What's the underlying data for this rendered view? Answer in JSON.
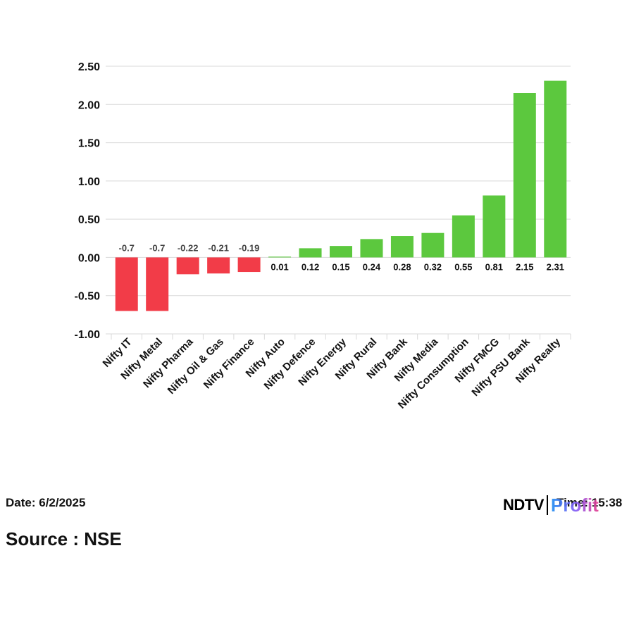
{
  "chart_data": {
    "type": "bar",
    "categories": [
      "Nifty IT",
      "Nifty Metal",
      "Nifty Pharma",
      "Nifty Oil & Gas",
      "Nifty Finance",
      "Nifty Auto",
      "Nifty Defence",
      "Nifty Energy",
      "Nifty Rural",
      "Nifty Bank",
      "Nifty Media",
      "Nifty Consumption",
      "Nifty FMCG",
      "Nifty PSU Bank",
      "Nifty Realty"
    ],
    "values": [
      -0.7,
      -0.7,
      -0.22,
      -0.21,
      -0.19,
      0.01,
      0.12,
      0.15,
      0.24,
      0.28,
      0.32,
      0.55,
      0.81,
      2.15,
      2.31
    ],
    "value_labels": [
      "-0.7",
      "-0.7",
      "-0.22",
      "-0.21",
      "-0.19",
      "0.01",
      "0.12",
      "0.15",
      "0.24",
      "0.28",
      "0.32",
      "0.55",
      "0.81",
      "2.15",
      "2.31"
    ],
    "yticks": [
      "2.50",
      "2.00",
      "1.50",
      "1.00",
      "0.50",
      "0.00",
      "-0.50",
      "-1.00"
    ],
    "ylim": [
      -1.0,
      2.5
    ],
    "grid": true,
    "colors": {
      "positive": "#5cc83e",
      "negative": "#f23c48",
      "grid": "#d9d9d9",
      "label_negative": "#444444",
      "label_positive": "#111111"
    }
  },
  "footer": {
    "date_label": "Date:",
    "date_value": "6/2/2025",
    "source": "Source : NSE",
    "time_label": "Time: 15:38"
  },
  "logo": {
    "ndtv": "NDTV",
    "profit": "Profit"
  }
}
